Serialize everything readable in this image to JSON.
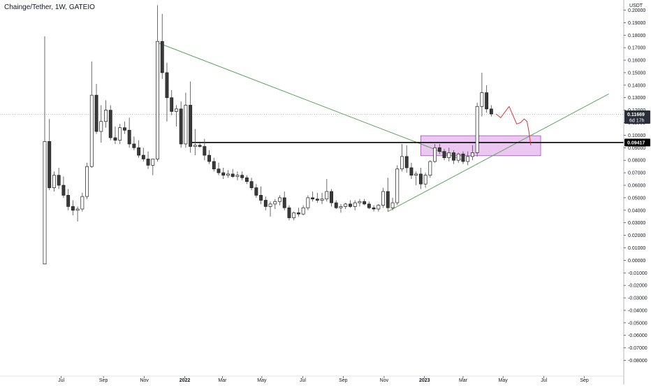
{
  "title": "Chainge/Tether, 1W, GATEIO",
  "currency": "USDT",
  "colors": {
    "background": "#ffffff",
    "up_body": "#ffffff",
    "down_body": "#3a3a3a",
    "candle_outline": "#1e1e1e",
    "wick": "#5a5a5a",
    "trendline": "#5aa85a",
    "horizontal_level": "#000000",
    "zone_fill": "#e8bdf0",
    "zone_border": "#a64dbf",
    "projection": "#e0303a",
    "last_price_tag": "#2a2e39",
    "level_tag": "#000000"
  },
  "chart_data": {
    "type": "candlestick",
    "symbol": "Chainge/Tether",
    "timeframe": "1W",
    "exchange": "GATEIO",
    "y_unit": "USDT",
    "ylim": [
      -0.085,
      0.21
    ],
    "y_ticks": [
      "0.20000",
      "0.19000",
      "0.18000",
      "0.17000",
      "0.16000",
      "0.15000",
      "0.14000",
      "0.13000",
      "0.12000",
      "0.11000",
      "0.10000",
      "0.09000",
      "0.08000",
      "0.07000",
      "0.06000",
      "0.05000",
      "0.04000",
      "0.03000",
      "0.02000",
      "0.01000",
      "0.00000",
      "-0.01000",
      "-0.02000",
      "-0.03000",
      "-0.04000",
      "-0.05000",
      "-0.06000",
      "-0.07000",
      "-0.08000"
    ],
    "x_labels": [
      {
        "label": "Jul",
        "week": 3.5,
        "bold": false
      },
      {
        "label": "Sep",
        "week": 12.5,
        "bold": false
      },
      {
        "label": "Nov",
        "week": 21.2,
        "bold": false
      },
      {
        "label": "2022",
        "week": 29.8,
        "bold": true
      },
      {
        "label": "Mar",
        "week": 37.8,
        "bold": false
      },
      {
        "label": "May",
        "week": 46.2,
        "bold": false
      },
      {
        "label": "Jul",
        "week": 54.9,
        "bold": false
      },
      {
        "label": "Sep",
        "week": 63.5,
        "bold": false
      },
      {
        "label": "Nov",
        "week": 72.2,
        "bold": false
      },
      {
        "label": "2023",
        "week": 80.8,
        "bold": true
      },
      {
        "label": "Mar",
        "week": 89.0,
        "bold": false
      },
      {
        "label": "May",
        "week": 97.5,
        "bold": false
      },
      {
        "label": "Jul",
        "week": 106.2,
        "bold": false
      },
      {
        "label": "Sep",
        "week": 114.8,
        "bold": false
      }
    ],
    "candles": [
      {
        "o": -0.003,
        "h": 0.179,
        "l": -0.003,
        "c": 0.095
      },
      {
        "o": 0.095,
        "h": 0.113,
        "l": 0.056,
        "c": 0.058
      },
      {
        "o": 0.058,
        "h": 0.071,
        "l": 0.055,
        "c": 0.068
      },
      {
        "o": 0.068,
        "h": 0.074,
        "l": 0.057,
        "c": 0.06
      },
      {
        "o": 0.06,
        "h": 0.067,
        "l": 0.05,
        "c": 0.052
      },
      {
        "o": 0.052,
        "h": 0.057,
        "l": 0.04,
        "c": 0.043
      },
      {
        "o": 0.043,
        "h": 0.048,
        "l": 0.036,
        "c": 0.04
      },
      {
        "o": 0.04,
        "h": 0.043,
        "l": 0.031,
        "c": 0.041
      },
      {
        "o": 0.041,
        "h": 0.054,
        "l": 0.039,
        "c": 0.051
      },
      {
        "o": 0.051,
        "h": 0.078,
        "l": 0.049,
        "c": 0.075
      },
      {
        "o": 0.075,
        "h": 0.159,
        "l": 0.074,
        "c": 0.132
      },
      {
        "o": 0.132,
        "h": 0.141,
        "l": 0.101,
        "c": 0.103
      },
      {
        "o": 0.103,
        "h": 0.124,
        "l": 0.094,
        "c": 0.111
      },
      {
        "o": 0.111,
        "h": 0.128,
        "l": 0.106,
        "c": 0.12
      },
      {
        "o": 0.12,
        "h": 0.124,
        "l": 0.096,
        "c": 0.098
      },
      {
        "o": 0.098,
        "h": 0.107,
        "l": 0.093,
        "c": 0.096
      },
      {
        "o": 0.096,
        "h": 0.109,
        "l": 0.093,
        "c": 0.106
      },
      {
        "o": 0.106,
        "h": 0.111,
        "l": 0.101,
        "c": 0.104
      },
      {
        "o": 0.104,
        "h": 0.114,
        "l": 0.09,
        "c": 0.093
      },
      {
        "o": 0.093,
        "h": 0.099,
        "l": 0.088,
        "c": 0.09
      },
      {
        "o": 0.09,
        "h": 0.096,
        "l": 0.082,
        "c": 0.084
      },
      {
        "o": 0.084,
        "h": 0.09,
        "l": 0.079,
        "c": 0.081
      },
      {
        "o": 0.081,
        "h": 0.087,
        "l": 0.073,
        "c": 0.076
      },
      {
        "o": 0.076,
        "h": 0.08,
        "l": 0.068,
        "c": 0.081
      },
      {
        "o": 0.081,
        "h": 0.204,
        "l": 0.079,
        "c": 0.175
      },
      {
        "o": 0.175,
        "h": 0.197,
        "l": 0.145,
        "c": 0.15
      },
      {
        "o": 0.15,
        "h": 0.158,
        "l": 0.111,
        "c": 0.13
      },
      {
        "o": 0.13,
        "h": 0.136,
        "l": 0.116,
        "c": 0.119
      },
      {
        "o": 0.119,
        "h": 0.124,
        "l": 0.107,
        "c": 0.121
      },
      {
        "o": 0.121,
        "h": 0.127,
        "l": 0.09,
        "c": 0.093
      },
      {
        "o": 0.093,
        "h": 0.134,
        "l": 0.09,
        "c": 0.124
      },
      {
        "o": 0.124,
        "h": 0.143,
        "l": 0.086,
        "c": 0.091
      },
      {
        "o": 0.091,
        "h": 0.105,
        "l": 0.084,
        "c": 0.092
      },
      {
        "o": 0.092,
        "h": 0.094,
        "l": 0.09,
        "c": 0.091
      },
      {
        "o": 0.091,
        "h": 0.097,
        "l": 0.08,
        "c": 0.084
      },
      {
        "o": 0.084,
        "h": 0.088,
        "l": 0.077,
        "c": 0.079
      },
      {
        "o": 0.079,
        "h": 0.082,
        "l": 0.071,
        "c": 0.073
      },
      {
        "o": 0.073,
        "h": 0.078,
        "l": 0.068,
        "c": 0.07
      },
      {
        "o": 0.07,
        "h": 0.074,
        "l": 0.065,
        "c": 0.068
      },
      {
        "o": 0.068,
        "h": 0.072,
        "l": 0.066,
        "c": 0.069
      },
      {
        "o": 0.069,
        "h": 0.073,
        "l": 0.066,
        "c": 0.067
      },
      {
        "o": 0.067,
        "h": 0.071,
        "l": 0.064,
        "c": 0.068
      },
      {
        "o": 0.068,
        "h": 0.071,
        "l": 0.064,
        "c": 0.066
      },
      {
        "o": 0.066,
        "h": 0.068,
        "l": 0.061,
        "c": 0.063
      },
      {
        "o": 0.063,
        "h": 0.066,
        "l": 0.056,
        "c": 0.058
      },
      {
        "o": 0.058,
        "h": 0.061,
        "l": 0.05,
        "c": 0.052
      },
      {
        "o": 0.052,
        "h": 0.059,
        "l": 0.045,
        "c": 0.048
      },
      {
        "o": 0.048,
        "h": 0.051,
        "l": 0.04,
        "c": 0.043
      },
      {
        "o": 0.043,
        "h": 0.047,
        "l": 0.035,
        "c": 0.045
      },
      {
        "o": 0.045,
        "h": 0.049,
        "l": 0.041,
        "c": 0.047
      },
      {
        "o": 0.047,
        "h": 0.052,
        "l": 0.044,
        "c": 0.05
      },
      {
        "o": 0.05,
        "h": 0.055,
        "l": 0.04,
        "c": 0.042
      },
      {
        "o": 0.042,
        "h": 0.044,
        "l": 0.032,
        "c": 0.034
      },
      {
        "o": 0.034,
        "h": 0.039,
        "l": 0.032,
        "c": 0.038
      },
      {
        "o": 0.038,
        "h": 0.042,
        "l": 0.035,
        "c": 0.037
      },
      {
        "o": 0.037,
        "h": 0.044,
        "l": 0.036,
        "c": 0.042
      },
      {
        "o": 0.042,
        "h": 0.052,
        "l": 0.04,
        "c": 0.05
      },
      {
        "o": 0.05,
        "h": 0.055,
        "l": 0.047,
        "c": 0.049
      },
      {
        "o": 0.049,
        "h": 0.054,
        "l": 0.046,
        "c": 0.048
      },
      {
        "o": 0.048,
        "h": 0.054,
        "l": 0.045,
        "c": 0.049
      },
      {
        "o": 0.049,
        "h": 0.065,
        "l": 0.047,
        "c": 0.055
      },
      {
        "o": 0.055,
        "h": 0.057,
        "l": 0.043,
        "c": 0.046
      },
      {
        "o": 0.046,
        "h": 0.048,
        "l": 0.041,
        "c": 0.042
      },
      {
        "o": 0.042,
        "h": 0.045,
        "l": 0.038,
        "c": 0.043
      },
      {
        "o": 0.043,
        "h": 0.046,
        "l": 0.041,
        "c": 0.045
      },
      {
        "o": 0.045,
        "h": 0.048,
        "l": 0.042,
        "c": 0.043
      },
      {
        "o": 0.043,
        "h": 0.048,
        "l": 0.04,
        "c": 0.046
      },
      {
        "o": 0.046,
        "h": 0.049,
        "l": 0.043,
        "c": 0.047
      },
      {
        "o": 0.047,
        "h": 0.049,
        "l": 0.044,
        "c": 0.045
      },
      {
        "o": 0.045,
        "h": 0.047,
        "l": 0.041,
        "c": 0.042
      },
      {
        "o": 0.042,
        "h": 0.044,
        "l": 0.039,
        "c": 0.041
      },
      {
        "o": 0.041,
        "h": 0.045,
        "l": 0.039,
        "c": 0.044
      },
      {
        "o": 0.044,
        "h": 0.058,
        "l": 0.042,
        "c": 0.055
      },
      {
        "o": 0.055,
        "h": 0.066,
        "l": 0.039,
        "c": 0.042
      },
      {
        "o": 0.042,
        "h": 0.05,
        "l": 0.04,
        "c": 0.046
      },
      {
        "o": 0.046,
        "h": 0.076,
        "l": 0.044,
        "c": 0.073
      },
      {
        "o": 0.073,
        "h": 0.093,
        "l": 0.071,
        "c": 0.083
      },
      {
        "o": 0.083,
        "h": 0.092,
        "l": 0.07,
        "c": 0.074
      },
      {
        "o": 0.074,
        "h": 0.078,
        "l": 0.065,
        "c": 0.068
      },
      {
        "o": 0.068,
        "h": 0.071,
        "l": 0.06,
        "c": 0.069
      },
      {
        "o": 0.069,
        "h": 0.074,
        "l": 0.057,
        "c": 0.061
      },
      {
        "o": 0.061,
        "h": 0.07,
        "l": 0.058,
        "c": 0.068
      },
      {
        "o": 0.068,
        "h": 0.08,
        "l": 0.066,
        "c": 0.079
      },
      {
        "o": 0.079,
        "h": 0.093,
        "l": 0.078,
        "c": 0.09
      },
      {
        "o": 0.09,
        "h": 0.093,
        "l": 0.085,
        "c": 0.087
      },
      {
        "o": 0.087,
        "h": 0.089,
        "l": 0.08,
        "c": 0.082
      },
      {
        "o": 0.082,
        "h": 0.09,
        "l": 0.079,
        "c": 0.086
      },
      {
        "o": 0.086,
        "h": 0.088,
        "l": 0.077,
        "c": 0.08
      },
      {
        "o": 0.08,
        "h": 0.086,
        "l": 0.078,
        "c": 0.085
      },
      {
        "o": 0.085,
        "h": 0.087,
        "l": 0.077,
        "c": 0.079
      },
      {
        "o": 0.079,
        "h": 0.087,
        "l": 0.076,
        "c": 0.083
      },
      {
        "o": 0.083,
        "h": 0.092,
        "l": 0.08,
        "c": 0.086
      },
      {
        "o": 0.086,
        "h": 0.126,
        "l": 0.083,
        "c": 0.123
      },
      {
        "o": 0.123,
        "h": 0.15,
        "l": 0.115,
        "c": 0.134
      },
      {
        "o": 0.134,
        "h": 0.14,
        "l": 0.118,
        "c": 0.121
      },
      {
        "o": 0.121,
        "h": 0.124,
        "l": 0.115,
        "c": 0.117
      }
    ],
    "annotations": {
      "descending_trendline": {
        "from": {
          "week": 24,
          "price": 0.174
        },
        "to": {
          "week": 89,
          "price": 0.08
        }
      },
      "ascending_trendline": {
        "from": {
          "week": 73,
          "price": 0.039
        },
        "to": {
          "week": 120,
          "price": 0.133
        }
      },
      "horizontal_level": {
        "price": 0.09417,
        "from_week": 31
      },
      "zone": {
        "top": 0.0996,
        "bottom": 0.0836,
        "from_week": 80,
        "to_week": 105.5
      },
      "projection_path": [
        {
          "week": 96,
          "price": 0.117
        },
        {
          "week": 97,
          "price": 0.114
        },
        {
          "week": 98,
          "price": 0.119
        },
        {
          "week": 98.8,
          "price": 0.123
        },
        {
          "week": 99.6,
          "price": 0.116
        },
        {
          "week": 100.4,
          "price": 0.109
        },
        {
          "week": 101.2,
          "price": 0.11
        },
        {
          "week": 102,
          "price": 0.113
        },
        {
          "week": 102.6,
          "price": 0.111
        },
        {
          "week": 103,
          "price": 0.103
        },
        {
          "week": 103.4,
          "price": 0.092
        }
      ]
    },
    "last_price": "0.11669",
    "countdown": "6d 17h",
    "level_price": "0.09417"
  }
}
